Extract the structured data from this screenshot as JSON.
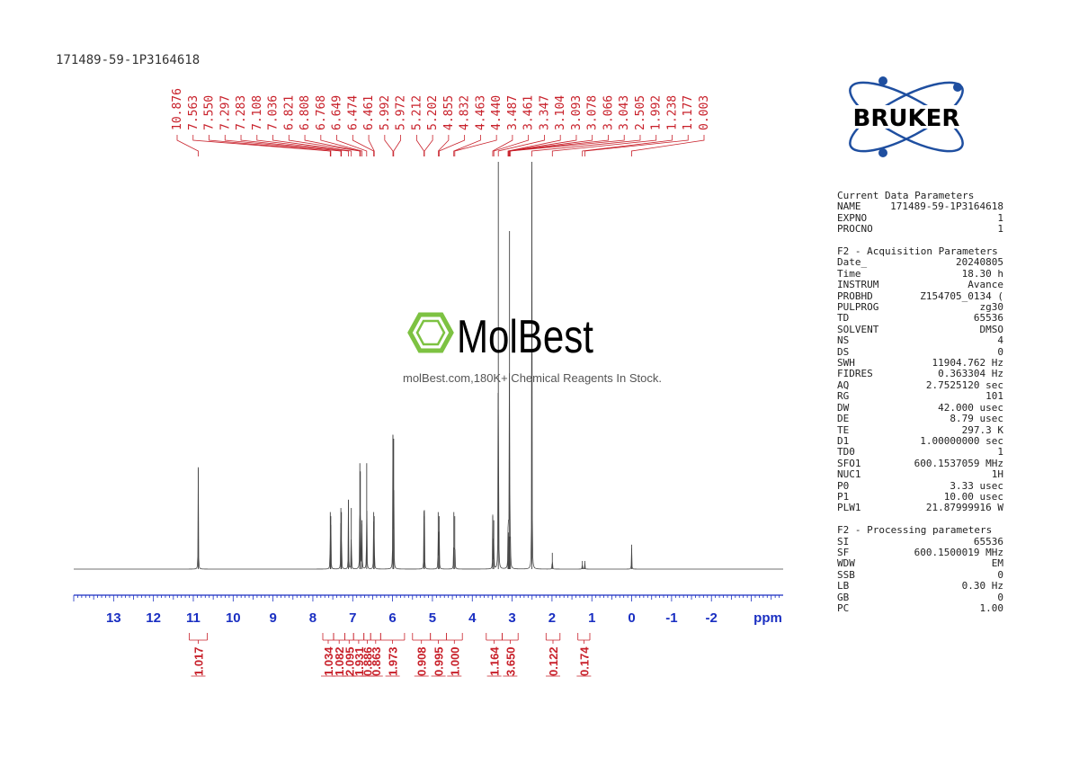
{
  "sample_name": "171489-59-1P3164618",
  "logo": {
    "brand_text": "BRUKER",
    "color": "#1f4fa0",
    "icon": "atom-orbit-icon"
  },
  "watermark": {
    "brand_text": "MolBest",
    "tagline": "molBest.com,180K+ Chemical Reagents In Stock.",
    "icon": "benzene-ring-icon",
    "icon_color": "#7dc242"
  },
  "parameters": {
    "current": {
      "heading": "Current Data Parameters",
      "rows": [
        [
          "NAME",
          "171489-59-1P3164618"
        ],
        [
          "EXPNO",
          "1"
        ],
        [
          "PROCNO",
          "1"
        ]
      ]
    },
    "acquisition": {
      "heading": "F2 - Acquisition Parameters",
      "rows": [
        [
          "Date_",
          "20240805"
        ],
        [
          "Time",
          "18.30 h"
        ],
        [
          "INSTRUM",
          "Avance"
        ],
        [
          "PROBHD",
          "Z154705_0134 ("
        ],
        [
          "PULPROG",
          "zg30"
        ],
        [
          "TD",
          "65536"
        ],
        [
          "SOLVENT",
          "DMSO"
        ],
        [
          "NS",
          "4"
        ],
        [
          "DS",
          "0"
        ],
        [
          "SWH",
          "11904.762 Hz"
        ],
        [
          "FIDRES",
          "0.363304 Hz"
        ],
        [
          "AQ",
          "2.7525120 sec"
        ],
        [
          "RG",
          "101"
        ],
        [
          "DW",
          "42.000 usec"
        ],
        [
          "DE",
          "8.79 usec"
        ],
        [
          "TE",
          "297.3 K"
        ],
        [
          "D1",
          "1.00000000 sec"
        ],
        [
          "TD0",
          "1"
        ],
        [
          "SFO1",
          "600.1537059 MHz"
        ],
        [
          "NUC1",
          "1H"
        ],
        [
          "P0",
          "3.33 usec"
        ],
        [
          "P1",
          "10.00 usec"
        ],
        [
          "PLW1",
          "21.87999916 W"
        ]
      ]
    },
    "processing": {
      "heading": "F2 - Processing parameters",
      "rows": [
        [
          "SI",
          "65536"
        ],
        [
          "SF",
          "600.1500019 MHz"
        ],
        [
          "WDW",
          "EM"
        ],
        [
          "SSB",
          "0"
        ],
        [
          "LB",
          "0.30 Hz"
        ],
        [
          "GB",
          "0"
        ],
        [
          "PC",
          "1.00"
        ]
      ]
    }
  },
  "chart_data": {
    "type": "line",
    "xlabel": "ppm",
    "x_reversed": true,
    "xlim": [
      14.0,
      -3.8
    ],
    "x_ticks": [
      "13",
      "12",
      "11",
      "10",
      "9",
      "8",
      "7",
      "6",
      "5",
      "4",
      "3",
      "2",
      "1",
      "0",
      "-1",
      "-2"
    ],
    "ylim": [
      0,
      1.0
    ],
    "peak_labels": [
      "10.876",
      "7.563",
      "7.550",
      "7.297",
      "7.283",
      "7.108",
      "7.036",
      "6.821",
      "6.808",
      "6.768",
      "6.649",
      "6.474",
      "6.461",
      "5.992",
      "5.972",
      "5.212",
      "5.202",
      "4.855",
      "4.832",
      "4.463",
      "4.440",
      "3.487",
      "3.461",
      "3.347",
      "3.104",
      "3.093",
      "3.078",
      "3.066",
      "3.043",
      "2.505",
      "1.992",
      "1.238",
      "1.177",
      "0.003"
    ],
    "peaks": [
      {
        "ppm": 10.876,
        "height": 0.25
      },
      {
        "ppm": 7.563,
        "height": 0.14
      },
      {
        "ppm": 7.55,
        "height": 0.13
      },
      {
        "ppm": 7.297,
        "height": 0.15
      },
      {
        "ppm": 7.283,
        "height": 0.14
      },
      {
        "ppm": 7.108,
        "height": 0.17
      },
      {
        "ppm": 7.036,
        "height": 0.15
      },
      {
        "ppm": 6.821,
        "height": 0.26
      },
      {
        "ppm": 6.808,
        "height": 0.24
      },
      {
        "ppm": 6.768,
        "height": 0.12
      },
      {
        "ppm": 6.649,
        "height": 0.26
      },
      {
        "ppm": 6.474,
        "height": 0.14
      },
      {
        "ppm": 6.461,
        "height": 0.13
      },
      {
        "ppm": 5.992,
        "height": 0.33
      },
      {
        "ppm": 5.972,
        "height": 0.32
      },
      {
        "ppm": 5.212,
        "height": 0.13
      },
      {
        "ppm": 5.202,
        "height": 0.13
      },
      {
        "ppm": 4.855,
        "height": 0.14
      },
      {
        "ppm": 4.832,
        "height": 0.13
      },
      {
        "ppm": 4.463,
        "height": 0.14
      },
      {
        "ppm": 4.44,
        "height": 0.13
      },
      {
        "ppm": 3.487,
        "height": 0.13
      },
      {
        "ppm": 3.461,
        "height": 0.12
      },
      {
        "ppm": 3.347,
        "height": 1.0
      },
      {
        "ppm": 3.104,
        "height": 0.08
      },
      {
        "ppm": 3.093,
        "height": 0.09
      },
      {
        "ppm": 3.078,
        "height": 0.08
      },
      {
        "ppm": 3.066,
        "height": 0.83
      },
      {
        "ppm": 3.043,
        "height": 0.08
      },
      {
        "ppm": 2.505,
        "height": 1.0
      },
      {
        "ppm": 1.992,
        "height": 0.04
      },
      {
        "ppm": 1.238,
        "height": 0.02
      },
      {
        "ppm": 1.177,
        "height": 0.02
      },
      {
        "ppm": 0.003,
        "height": 0.06
      }
    ],
    "integrals": [
      {
        "ppm_from": 11.1,
        "ppm_to": 10.65,
        "value": "1.017"
      },
      {
        "ppm_from": 7.75,
        "ppm_to": 7.48,
        "value": "1.034"
      },
      {
        "ppm_from": 7.48,
        "ppm_to": 7.2,
        "value": "1.082"
      },
      {
        "ppm_from": 7.2,
        "ppm_to": 6.98,
        "value": "2.095"
      },
      {
        "ppm_from": 6.98,
        "ppm_to": 6.72,
        "value": "1.931"
      },
      {
        "ppm_from": 6.72,
        "ppm_to": 6.55,
        "value": "0.886"
      },
      {
        "ppm_from": 6.55,
        "ppm_to": 6.3,
        "value": "0.863"
      },
      {
        "ppm_from": 6.3,
        "ppm_to": 5.7,
        "value": "1.973"
      },
      {
        "ppm_from": 5.5,
        "ppm_to": 5.05,
        "value": "0.908"
      },
      {
        "ppm_from": 5.05,
        "ppm_to": 4.65,
        "value": "0.995"
      },
      {
        "ppm_from": 4.65,
        "ppm_to": 4.25,
        "value": "1.000"
      },
      {
        "ppm_from": 3.65,
        "ppm_to": 3.25,
        "value": "1.164"
      },
      {
        "ppm_from": 3.25,
        "ppm_to": 2.85,
        "value": "3.650"
      },
      {
        "ppm_from": 2.15,
        "ppm_to": 1.8,
        "value": "0.122"
      },
      {
        "ppm_from": 1.35,
        "ppm_to": 1.05,
        "value": "0.174"
      }
    ],
    "colors": {
      "spectrum": "#444444",
      "axis": "#1a2fc2",
      "labels": "#c8202a"
    }
  }
}
